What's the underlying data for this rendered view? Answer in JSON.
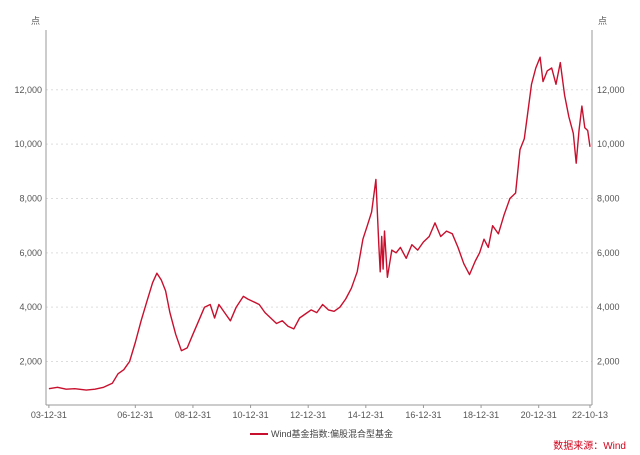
{
  "colors": {
    "series": "#c8102e",
    "axis": "#999999",
    "grid": "#dddddd",
    "source": "#d0021b"
  },
  "source_note": "数据来源：Wind",
  "chart_data": {
    "type": "line",
    "y_unit_left": "点",
    "y_unit_right": "点",
    "ylim": [
      400,
      14200
    ],
    "yticks": [
      2000,
      4000,
      6000,
      8000,
      10000,
      12000
    ],
    "ytick_labels": [
      "2,000",
      "4,000",
      "6,000",
      "8,000",
      "10,000",
      "12,000"
    ],
    "xlim": [
      2003.9,
      2022.85
    ],
    "xticks": [
      2004.0,
      2007.0,
      2009.0,
      2011.0,
      2013.0,
      2015.0,
      2017.0,
      2019.0,
      2021.0,
      2022.78
    ],
    "xtick_labels": [
      "03-12-31",
      "06-12-31",
      "08-12-31",
      "10-12-31",
      "12-12-31",
      "14-12-31",
      "16-12-31",
      "18-12-31",
      "20-12-31",
      "22-10-13"
    ],
    "grid": true,
    "legend_position": "bottom",
    "series": [
      {
        "name": "Wind基金指数:偏股混合型基金",
        "x": [
          2004.0,
          2004.3,
          2004.6,
          2004.9,
          2005.3,
          2005.6,
          2005.9,
          2006.2,
          2006.4,
          2006.6,
          2006.8,
          2007.0,
          2007.2,
          2007.4,
          2007.6,
          2007.75,
          2007.9,
          2008.05,
          2008.2,
          2008.4,
          2008.6,
          2008.8,
          2009.0,
          2009.2,
          2009.4,
          2009.6,
          2009.75,
          2009.9,
          2010.1,
          2010.3,
          2010.5,
          2010.75,
          2010.9,
          2011.1,
          2011.3,
          2011.5,
          2011.7,
          2011.9,
          2012.1,
          2012.3,
          2012.5,
          2012.7,
          2012.9,
          2013.1,
          2013.3,
          2013.5,
          2013.7,
          2013.9,
          2014.1,
          2014.3,
          2014.5,
          2014.7,
          2014.9,
          2015.05,
          2015.2,
          2015.35,
          2015.45,
          2015.5,
          2015.55,
          2015.6,
          2015.65,
          2015.75,
          2015.9,
          2016.05,
          2016.2,
          2016.4,
          2016.6,
          2016.8,
          2017.0,
          2017.2,
          2017.4,
          2017.6,
          2017.8,
          2018.0,
          2018.2,
          2018.4,
          2018.6,
          2018.8,
          2018.95,
          2019.1,
          2019.25,
          2019.4,
          2019.6,
          2019.8,
          2020.0,
          2020.2,
          2020.35,
          2020.5,
          2020.6,
          2020.75,
          2020.9,
          2021.05,
          2021.15,
          2021.3,
          2021.45,
          2021.6,
          2021.75,
          2021.9,
          2022.05,
          2022.2,
          2022.3,
          2022.4,
          2022.5,
          2022.6,
          2022.7,
          2022.78
        ],
        "y": [
          1000,
          1050,
          980,
          1000,
          950,
          980,
          1050,
          1200,
          1550,
          1700,
          2000,
          2700,
          3500,
          4200,
          4900,
          5250,
          5000,
          4600,
          3800,
          3000,
          2400,
          2500,
          3000,
          3500,
          4000,
          4100,
          3600,
          4100,
          3800,
          3500,
          4000,
          4400,
          4300,
          4200,
          4100,
          3800,
          3600,
          3400,
          3500,
          3300,
          3200,
          3600,
          3750,
          3900,
          3800,
          4100,
          3900,
          3850,
          4000,
          4300,
          4700,
          5300,
          6500,
          7000,
          7500,
          8700,
          6300,
          5300,
          6600,
          5400,
          6800,
          5100,
          6100,
          6000,
          6200,
          5800,
          6300,
          6100,
          6400,
          6600,
          7100,
          6600,
          6800,
          6700,
          6200,
          5600,
          5200,
          5700,
          6000,
          6500,
          6200,
          7000,
          6700,
          7400,
          8000,
          8200,
          9800,
          10200,
          11000,
          12200,
          12800,
          13200,
          12300,
          12700,
          12800,
          12200,
          13000,
          11800,
          11000,
          10400,
          9300,
          10500,
          11400,
          10600,
          10500,
          9900
        ]
      }
    ]
  }
}
